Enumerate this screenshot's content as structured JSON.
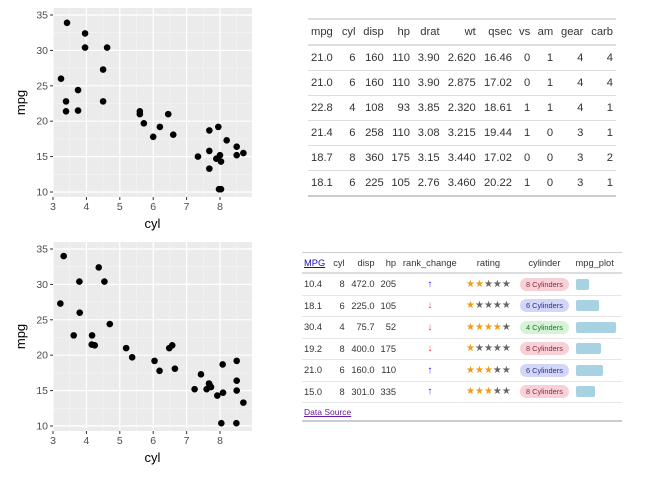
{
  "chart_data": [
    {
      "type": "scatter",
      "title": "",
      "xlabel": "cyl",
      "ylabel": "mpg",
      "xlim": [
        3,
        8.8
      ],
      "ylim": [
        9.5,
        35.5
      ],
      "xticks": [
        "3",
        "4",
        "5",
        "6",
        "7",
        "8"
      ],
      "yticks": [
        "10",
        "15",
        "20",
        "25",
        "30",
        "35"
      ],
      "grid": true,
      "points": [
        [
          3.42,
          33.9
        ],
        [
          3.96,
          32.4
        ],
        [
          3.96,
          30.4
        ],
        [
          4.62,
          30.4
        ],
        [
          4.5,
          27.3
        ],
        [
          3.24,
          26.0
        ],
        [
          3.75,
          24.4
        ],
        [
          3.39,
          22.8
        ],
        [
          4.5,
          22.8
        ],
        [
          3.39,
          21.4
        ],
        [
          3.75,
          21.5
        ],
        [
          5.6,
          21.4
        ],
        [
          5.6,
          21.0
        ],
        [
          5.72,
          19.7
        ],
        [
          6.45,
          21.0
        ],
        [
          6.2,
          19.2
        ],
        [
          6.0,
          17.8
        ],
        [
          6.6,
          18.1
        ],
        [
          7.34,
          15.0
        ],
        [
          7.68,
          18.7
        ],
        [
          7.68,
          15.8
        ],
        [
          7.68,
          13.3
        ],
        [
          7.95,
          19.2
        ],
        [
          7.89,
          14.7
        ],
        [
          8.0,
          15.2
        ],
        [
          8.03,
          14.3
        ],
        [
          8.2,
          17.3
        ],
        [
          8.5,
          16.4
        ],
        [
          8.5,
          15.2
        ],
        [
          8.7,
          15.5
        ],
        [
          7.97,
          10.4
        ],
        [
          8.03,
          10.4
        ]
      ]
    },
    {
      "type": "scatter",
      "title": "",
      "xlabel": "cyl",
      "ylabel": "mpg",
      "xlim": [
        3,
        8.8
      ],
      "ylim": [
        9.5,
        35.5
      ],
      "xticks": [
        "3",
        "4",
        "5",
        "6",
        "7",
        "8"
      ],
      "yticks": [
        "10",
        "15",
        "20",
        "25",
        "30",
        "35"
      ],
      "grid": true,
      "points": [
        [
          3.32,
          34.0
        ],
        [
          4.37,
          32.4
        ],
        [
          3.79,
          30.4
        ],
        [
          4.54,
          30.4
        ],
        [
          3.22,
          27.3
        ],
        [
          3.8,
          26.0
        ],
        [
          4.7,
          24.4
        ],
        [
          3.62,
          22.8
        ],
        [
          4.17,
          22.8
        ],
        [
          4.16,
          21.5
        ],
        [
          4.25,
          21.4
        ],
        [
          5.19,
          21.0
        ],
        [
          5.37,
          19.7
        ],
        [
          6.04,
          19.2
        ],
        [
          6.19,
          17.8
        ],
        [
          6.65,
          18.1
        ],
        [
          6.48,
          21.0
        ],
        [
          6.57,
          21.4
        ],
        [
          7.43,
          17.3
        ],
        [
          7.24,
          15.2
        ],
        [
          7.6,
          15.2
        ],
        [
          7.67,
          16.0
        ],
        [
          7.69,
          15.8
        ],
        [
          7.73,
          15.5
        ],
        [
          7.92,
          14.3
        ],
        [
          8.09,
          14.7
        ],
        [
          8.08,
          18.7
        ],
        [
          8.5,
          16.4
        ],
        [
          8.5,
          15.0
        ],
        [
          8.5,
          19.2
        ],
        [
          8.7,
          13.3
        ],
        [
          8.04,
          10.4
        ],
        [
          8.49,
          10.4
        ]
      ]
    }
  ],
  "table1": {
    "headers": [
      "mpg",
      "cyl",
      "disp",
      "hp",
      "drat",
      "wt",
      "qsec",
      "vs",
      "am",
      "gear",
      "carb"
    ],
    "rows": [
      [
        "21.0",
        "6",
        "160",
        "110",
        "3.90",
        "2.620",
        "16.46",
        "0",
        "1",
        "4",
        "4"
      ],
      [
        "21.0",
        "6",
        "160",
        "110",
        "3.90",
        "2.875",
        "17.02",
        "0",
        "1",
        "4",
        "4"
      ],
      [
        "22.8",
        "4",
        "108",
        "93",
        "3.85",
        "2.320",
        "18.61",
        "1",
        "1",
        "4",
        "1"
      ],
      [
        "21.4",
        "6",
        "258",
        "110",
        "3.08",
        "3.215",
        "19.44",
        "1",
        "0",
        "3",
        "1"
      ],
      [
        "18.7",
        "8",
        "360",
        "175",
        "3.15",
        "3.440",
        "17.02",
        "0",
        "0",
        "3",
        "2"
      ],
      [
        "18.1",
        "6",
        "225",
        "105",
        "2.76",
        "3.460",
        "20.22",
        "1",
        "0",
        "3",
        "1"
      ]
    ]
  },
  "table2": {
    "headers": [
      "MPG",
      "cyl",
      "disp",
      "hp",
      "rank_change",
      "rating",
      "cylinder",
      "mpg_plot"
    ],
    "rows": [
      {
        "mpg": "10.4",
        "cyl": "8",
        "disp": "472.0",
        "hp": "205",
        "rank": "up",
        "rating": 2,
        "cylinder": "8 Cylinders",
        "mpg_value": 10.4
      },
      {
        "mpg": "18.1",
        "cyl": "6",
        "disp": "225.0",
        "hp": "105",
        "rank": "down",
        "rating": 1,
        "cylinder": "6 Cylinders",
        "mpg_value": 18.1
      },
      {
        "mpg": "30.4",
        "cyl": "4",
        "disp": "75.7",
        "hp": "52",
        "rank": "down",
        "rating": 4,
        "cylinder": "4 Cylinders",
        "mpg_value": 30.4
      },
      {
        "mpg": "19.2",
        "cyl": "8",
        "disp": "400.0",
        "hp": "175",
        "rank": "down",
        "rating": 1,
        "cylinder": "8 Cylinders",
        "mpg_value": 19.2
      },
      {
        "mpg": "21.0",
        "cyl": "6",
        "disp": "160.0",
        "hp": "110",
        "rank": "up",
        "rating": 3,
        "cylinder": "6 Cylinders",
        "mpg_value": 21.0
      },
      {
        "mpg": "15.0",
        "cyl": "8",
        "disp": "301.0",
        "hp": "335",
        "rank": "up",
        "rating": 3,
        "cylinder": "8 Cylinders",
        "mpg_value": 15.0
      }
    ],
    "footer_link": "Data Source",
    "arrow_icons": {
      "up": "↑",
      "down": "↓"
    },
    "star_icon": "★",
    "colors": {
      "up": "#1a1aff",
      "down": "#e8333a",
      "star_on": "#f39c12",
      "star_off": "#666666",
      "bar": "#a6d2e2",
      "pill_8": {
        "bg": "#f8d1d8",
        "fg": "#8a2a3a"
      },
      "pill_6": {
        "bg": "#d4d6f8",
        "fg": "#2a2f8a"
      },
      "pill_4": {
        "bg": "#d3f5d6",
        "fg": "#2a6a33"
      }
    }
  }
}
